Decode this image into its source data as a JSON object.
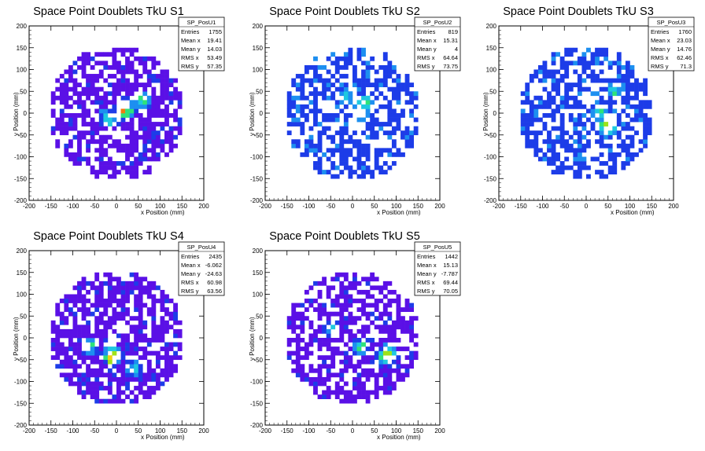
{
  "chart_data": [
    {
      "type": "heatmap",
      "title": "Space Point Doublets TkU S1",
      "xlabel": "x Position (mm)",
      "ylabel": "y Position (mm)",
      "xlim": [
        -200,
        200
      ],
      "ylim": [
        -200,
        200
      ],
      "ticks": [
        "-200",
        "-150",
        "-100",
        "-50",
        "0",
        "50",
        "100",
        "150",
        "200"
      ],
      "bin_width_mm": 10,
      "stats": {
        "name": "SP_PosU1",
        "rows": [
          {
            "label": "Entries",
            "value": "1755"
          },
          {
            "label": "Mean x",
            "value": "19.41"
          },
          {
            "label": "Mean y",
            "value": "14.03"
          },
          {
            "label": "RMS x",
            "value": "53.49"
          },
          {
            "label": "RMS y",
            "value": "57.35"
          }
        ]
      },
      "background_level": 1,
      "hotspots": [
        {
          "x": 20,
          "y": 10,
          "count": 9
        },
        {
          "x": 60,
          "y": 30,
          "count": 6
        },
        {
          "x": -20,
          "y": -10,
          "count": 5
        },
        {
          "x": 40,
          "y": 20,
          "count": 4
        }
      ],
      "density": 0.65,
      "seed": 11
    },
    {
      "type": "heatmap",
      "title": "Space Point Doublets TkU S2",
      "xlabel": "x Position (mm)",
      "ylabel": "y Position (mm)",
      "xlim": [
        -200,
        200
      ],
      "ylim": [
        -200,
        200
      ],
      "ticks": [
        "-200",
        "-150",
        "-100",
        "-50",
        "0",
        "50",
        "100",
        "150",
        "200"
      ],
      "bin_width_mm": 10,
      "stats": {
        "name": "SP_PosU2",
        "rows": [
          {
            "label": "Entries",
            "value": "819"
          },
          {
            "label": "Mean x",
            "value": "15.31"
          },
          {
            "label": "Mean y",
            "value": "4"
          },
          {
            "label": "RMS x",
            "value": "64.64"
          },
          {
            "label": "RMS y",
            "value": "73.75"
          }
        ]
      },
      "background_level": 2,
      "hotspots": [
        {
          "x": 30,
          "y": 20,
          "count": 6
        },
        {
          "x": 20,
          "y": 0,
          "count": 5
        },
        {
          "x": -10,
          "y": 40,
          "count": 4
        }
      ],
      "density": 0.55,
      "seed": 23
    },
    {
      "type": "heatmap",
      "title": "Space Point Doublets TkU S3",
      "xlabel": "x Position (mm)",
      "ylabel": "y Position (mm)",
      "xlim": [
        -200,
        200
      ],
      "ylim": [
        -200,
        200
      ],
      "ticks": [
        "-200",
        "-150",
        "-100",
        "-50",
        "0",
        "50",
        "100",
        "150",
        "200"
      ],
      "bin_width_mm": 10,
      "stats": {
        "name": "SP_PosU3",
        "rows": [
          {
            "label": "Entries",
            "value": "1760"
          },
          {
            "label": "Mean x",
            "value": "23.03"
          },
          {
            "label": "Mean y",
            "value": "14.76"
          },
          {
            "label": "RMS x",
            "value": "62.46"
          },
          {
            "label": "RMS y",
            "value": "71.3"
          }
        ]
      },
      "background_level": 2,
      "hotspots": [
        {
          "x": 50,
          "y": -30,
          "count": 8
        },
        {
          "x": 30,
          "y": 0,
          "count": 5
        },
        {
          "x": 70,
          "y": 50,
          "count": 4
        }
      ],
      "density": 0.6,
      "seed": 37
    },
    {
      "type": "heatmap",
      "title": "Space Point Doublets TkU S4",
      "xlabel": "x Position (mm)",
      "ylabel": "y Position (mm)",
      "xlim": [
        -200,
        200
      ],
      "ylim": [
        -200,
        200
      ],
      "ticks": [
        "-200",
        "-150",
        "-100",
        "-50",
        "0",
        "50",
        "100",
        "150",
        "200"
      ],
      "bin_width_mm": 10,
      "stats": {
        "name": "SP_PosU4",
        "rows": [
          {
            "label": "Entries",
            "value": "2435"
          },
          {
            "label": "Mean x",
            "value": "-6.062"
          },
          {
            "label": "Mean y",
            "value": "-24.63"
          },
          {
            "label": "RMS x",
            "value": "60.98"
          },
          {
            "label": "RMS y",
            "value": "63.56"
          }
        ]
      },
      "background_level": 1,
      "hotspots": [
        {
          "x": -10,
          "y": -40,
          "count": 9
        },
        {
          "x": -60,
          "y": -20,
          "count": 6
        },
        {
          "x": 40,
          "y": -70,
          "count": 5
        }
      ],
      "density": 0.7,
      "seed": 41
    },
    {
      "type": "heatmap",
      "title": "Space Point Doublets TkU S5",
      "xlabel": "x Position (mm)",
      "ylabel": "y Position (mm)",
      "xlim": [
        -200,
        200
      ],
      "ylim": [
        -200,
        200
      ],
      "ticks": [
        "-200",
        "-150",
        "-100",
        "-50",
        "0",
        "50",
        "100",
        "150",
        "200"
      ],
      "bin_width_mm": 10,
      "stats": {
        "name": "SP_PosU5",
        "rows": [
          {
            "label": "Entries",
            "value": "1442"
          },
          {
            "label": "Mean x",
            "value": "15.13"
          },
          {
            "label": "Mean y",
            "value": "-7.787"
          },
          {
            "label": "RMS x",
            "value": "69.44"
          },
          {
            "label": "RMS y",
            "value": "70.05"
          }
        ]
      },
      "background_level": 1,
      "hotspots": [
        {
          "x": 80,
          "y": -40,
          "count": 8
        },
        {
          "x": 20,
          "y": -20,
          "count": 6
        },
        {
          "x": -50,
          "y": 20,
          "count": 5
        }
      ],
      "density": 0.62,
      "seed": 53
    }
  ],
  "palette": [
    "#5a10e6",
    "#1d3ce8",
    "#1d8ff0",
    "#1fc8e0",
    "#2ee27a",
    "#9ee21a",
    "#f0d012",
    "#f07a10",
    "#e8201a"
  ]
}
